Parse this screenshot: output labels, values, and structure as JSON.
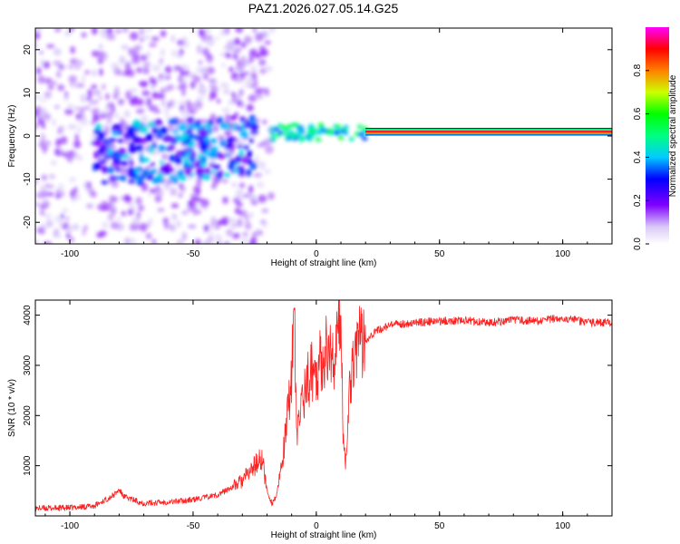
{
  "title": "PAZ1.2026.027.05.14.G25",
  "chart_data": [
    {
      "type": "heatmap",
      "title": "PAZ1.2026.027.05.14.G25",
      "xlabel": "Height of straight line (km)",
      "ylabel": "Frequency (Hz)",
      "xlim": [
        -114,
        120
      ],
      "ylim": [
        -25,
        25
      ],
      "xticks": [
        -100,
        -50,
        0,
        50,
        100
      ],
      "yticks": [
        -20,
        -10,
        0,
        10,
        20
      ],
      "xtick_labels": [
        "-100",
        "-50",
        "0",
        "50",
        "100"
      ],
      "ytick_labels": [
        "-20",
        "-10",
        "0",
        "10",
        "20"
      ],
      "colorbar": {
        "label": "Normalized spectral amplitude",
        "range": [
          0,
          1
        ],
        "ticks": [
          0.0,
          0.2,
          0.4,
          0.6,
          0.8
        ],
        "tick_labels": [
          "0.0",
          "0.2",
          "0.4",
          "0.6",
          "0.8"
        ],
        "colormap": "rainbow (white-violet-blue-cyan-green-yellow-red-magenta)"
      },
      "features": [
        {
          "name": "scattered noise",
          "x_range": [
            -114,
            -18
          ],
          "y_range": [
            -25,
            25
          ],
          "amplitude": 0.1
        },
        {
          "name": "noise patches",
          "x_range": [
            -90,
            -25
          ],
          "y_range": [
            -12,
            8
          ],
          "amplitude": 0.2
        },
        {
          "name": "carrier onset",
          "x_range": [
            -18,
            20
          ],
          "y_range": [
            -1,
            5
          ],
          "amplitude": 0.4
        },
        {
          "name": "strong carrier line",
          "x_range": [
            20,
            120
          ],
          "y_center": 1,
          "amplitude": 0.95
        }
      ]
    },
    {
      "type": "line",
      "xlabel": "Height of straight line (km)",
      "ylabel": "SNR (10 * v/v)",
      "xlim": [
        -114,
        120
      ],
      "ylim": [
        0,
        4300
      ],
      "xticks": [
        -100,
        -50,
        0,
        50,
        100
      ],
      "yticks": [
        1000,
        2000,
        3000,
        4000
      ],
      "xtick_labels": [
        "-100",
        "-50",
        "0",
        "50",
        "100"
      ],
      "ytick_labels": [
        "1000",
        "2000",
        "3000",
        "4000"
      ],
      "color": "#ff2020",
      "series": [
        {
          "name": "SNR",
          "x": [
            -114,
            -100,
            -90,
            -82,
            -80,
            -78,
            -70,
            -60,
            -50,
            -40,
            -35,
            -30,
            -25,
            -22,
            -20,
            -18,
            -16,
            -14,
            -12,
            -10,
            -9,
            -8,
            -6,
            -4,
            -2,
            0,
            2,
            4,
            6,
            8,
            10,
            11,
            12,
            13,
            14,
            15,
            16,
            18,
            20,
            22,
            25,
            30,
            40,
            50,
            60,
            70,
            80,
            90,
            100,
            110,
            120
          ],
          "y": [
            150,
            160,
            200,
            420,
            520,
            380,
            250,
            280,
            320,
            420,
            550,
            700,
            1000,
            1150,
            500,
            250,
            420,
            1000,
            1800,
            2900,
            4250,
            1500,
            2300,
            2600,
            2900,
            2900,
            3100,
            3300,
            3200,
            3250,
            4100,
            1400,
            1150,
            2100,
            2800,
            3200,
            3400,
            3450,
            3500,
            3600,
            3700,
            3800,
            3850,
            3880,
            3900,
            3850,
            3900,
            3880,
            3950,
            3850,
            3850
          ]
        }
      ]
    }
  ]
}
